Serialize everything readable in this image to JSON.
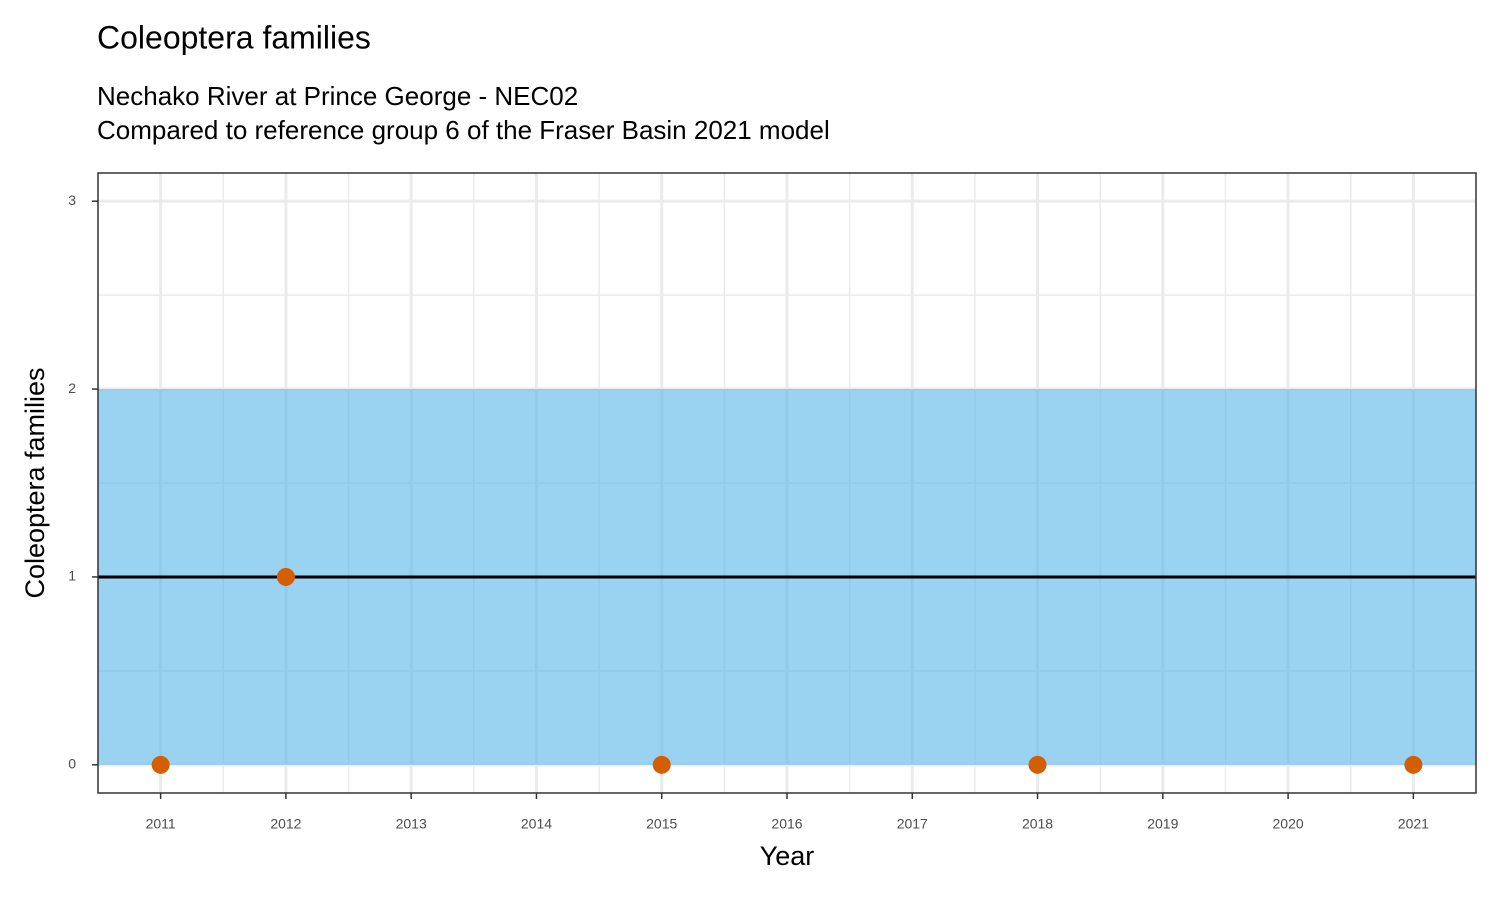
{
  "chart_data": {
    "type": "scatter",
    "title": "Coleoptera families",
    "subtitle": [
      "Nechako River at Prince George - NEC02",
      "Compared to reference group 6 of the Fraser Basin 2021 model"
    ],
    "x_label": "Year",
    "y_label": "Coleoptera families",
    "x": [
      2011,
      2012,
      2015,
      2018,
      2021
    ],
    "values": [
      0,
      1,
      0,
      0,
      0
    ],
    "color": "#d55e00",
    "band": {
      "lower": 0,
      "upper": 2,
      "color": "#56b4e9"
    },
    "reference_line": {
      "value": 1,
      "color": "#000000"
    },
    "xlim": [
      2010.5,
      2021.5
    ],
    "ylim": [
      -0.15,
      3.15
    ],
    "xticks": [
      2011,
      2012,
      2013,
      2014,
      2015,
      2016,
      2017,
      2018,
      2019,
      2020,
      2021
    ],
    "yticks": [
      0,
      1,
      2,
      3
    ],
    "grid": true
  }
}
